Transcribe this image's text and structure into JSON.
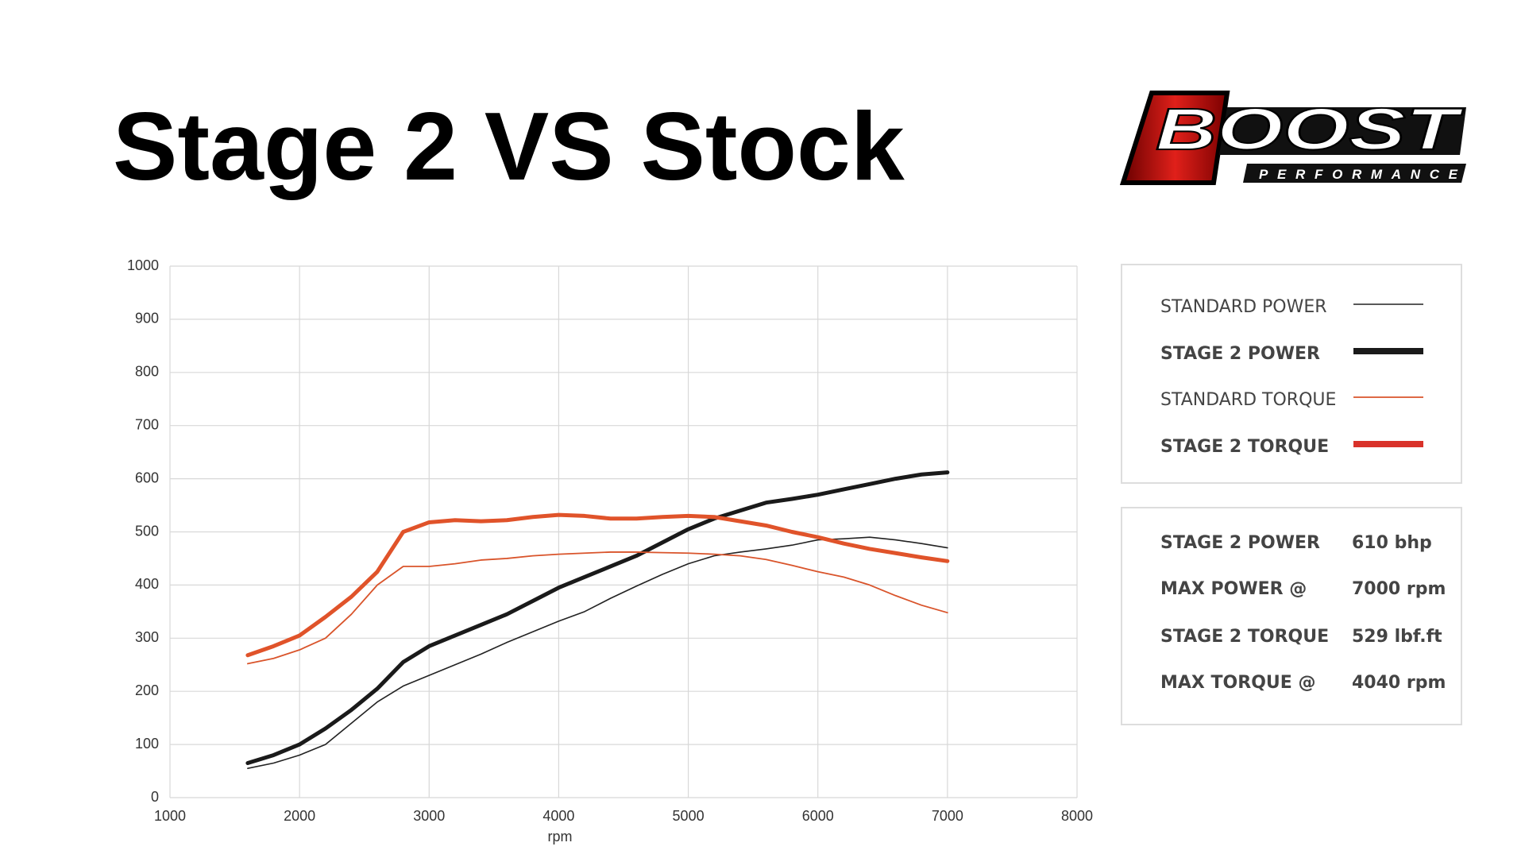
{
  "chart_data": {
    "type": "line",
    "title": "Stage 2 VS Stock",
    "x": [
      1600,
      1800,
      2000,
      2200,
      2400,
      2600,
      2800,
      3000,
      3200,
      3400,
      3600,
      3800,
      4000,
      4200,
      4400,
      4600,
      4800,
      5000,
      5200,
      5400,
      5600,
      5800,
      6000,
      6200,
      6400,
      6600,
      6800,
      7000
    ],
    "series": [
      {
        "name": "STANDARD POWER",
        "color": "#222222",
        "line_width": 1.6,
        "values": [
          55,
          65,
          80,
          100,
          140,
          180,
          210,
          230,
          250,
          270,
          292,
          312,
          332,
          350,
          375,
          398,
          420,
          440,
          455,
          462,
          468,
          475,
          485,
          487,
          490,
          485,
          478,
          470
        ]
      },
      {
        "name": "STAGE 2 POWER",
        "color": "#1a1a1a",
        "line_width": 5,
        "values": [
          65,
          80,
          100,
          130,
          165,
          205,
          255,
          285,
          305,
          325,
          345,
          370,
          395,
          415,
          435,
          455,
          480,
          505,
          525,
          540,
          555,
          562,
          570,
          580,
          590,
          600,
          608,
          612
        ]
      },
      {
        "name": "STANDARD TORQUE",
        "color": "#d9542b",
        "line_width": 1.8,
        "values": [
          252,
          262,
          278,
          300,
          345,
          400,
          435,
          435,
          440,
          447,
          450,
          455,
          458,
          460,
          462,
          462,
          461,
          460,
          458,
          455,
          448,
          437,
          425,
          415,
          400,
          380,
          362,
          348
        ]
      },
      {
        "name": "STAGE 2 TORQUE",
        "color": "#e0532a",
        "line_width": 5,
        "values": [
          268,
          285,
          305,
          340,
          378,
          425,
          500,
          518,
          522,
          520,
          522,
          528,
          532,
          530,
          525,
          525,
          528,
          530,
          528,
          520,
          512,
          500,
          490,
          478,
          468,
          460,
          452,
          445
        ]
      }
    ],
    "legend_swatch_colors": [
      "#222222",
      "#1a1a1a",
      "#d9542b",
      "#d9322a"
    ],
    "xlabel": "rpm",
    "xlim": [
      1000,
      8000
    ],
    "xticks": [
      1000,
      2000,
      3000,
      4000,
      5000,
      6000,
      7000,
      8000
    ],
    "ylim": [
      0,
      1000
    ],
    "yticks": [
      0,
      100,
      200,
      300,
      400,
      500,
      600,
      700,
      800,
      900,
      1000
    ],
    "grid": true,
    "legend": "right"
  },
  "stats": {
    "rows": [
      [
        "STAGE 2 POWER",
        "610 bhp"
      ],
      [
        "MAX POWER @",
        "7000 rpm"
      ],
      [
        "STAGE 2 TORQUE",
        "529 lbf.ft"
      ],
      [
        "MAX TORQUE @",
        "4040 rpm"
      ]
    ]
  },
  "logo": {
    "text": "BOOST",
    "subtitle": "PERFORMANCE"
  }
}
